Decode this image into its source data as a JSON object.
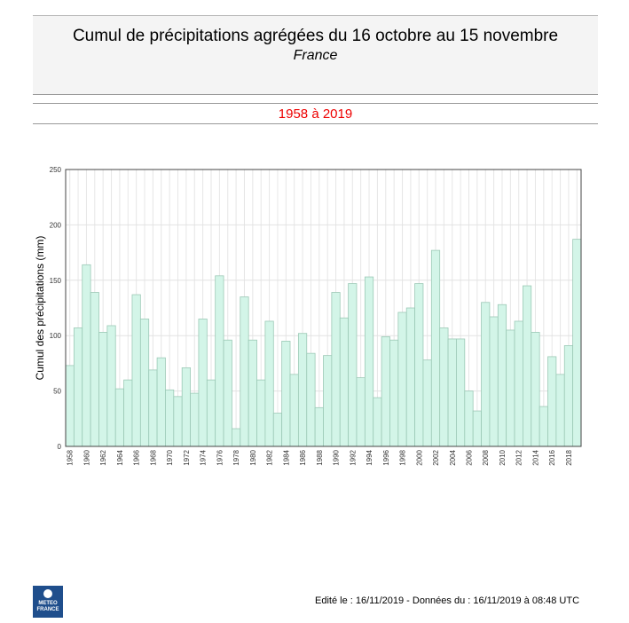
{
  "header": {
    "title": "Cumul de précipitations agrégées du 16 octobre au 15 novembre",
    "subtitle": "France",
    "period": "1958 à 2019"
  },
  "footer": {
    "text": "Edité le : 16/11/2019 - Données du : 16/11/2019 à 08:48 UTC",
    "logo": "METEO FRANCE"
  },
  "colors": {
    "bar_fill": "#d3f5e8",
    "bar_stroke": "#9cc9b6",
    "period_text": "#e00000"
  },
  "chart_data": {
    "type": "bar",
    "ylabel": "Cumul des précipitations (mm)",
    "xlabel": "",
    "ylim": [
      0,
      250
    ],
    "yticks": [
      0,
      50,
      100,
      150,
      200,
      250
    ],
    "grid": true,
    "categories": [
      1958,
      1959,
      1960,
      1961,
      1962,
      1963,
      1964,
      1965,
      1966,
      1967,
      1968,
      1969,
      1970,
      1971,
      1972,
      1973,
      1974,
      1975,
      1976,
      1977,
      1978,
      1979,
      1980,
      1981,
      1982,
      1983,
      1984,
      1985,
      1986,
      1987,
      1988,
      1989,
      1990,
      1991,
      1992,
      1993,
      1994,
      1995,
      1996,
      1997,
      1998,
      1999,
      2000,
      2001,
      2002,
      2003,
      2004,
      2005,
      2006,
      2007,
      2008,
      2009,
      2010,
      2011,
      2012,
      2013,
      2014,
      2015,
      2016,
      2017,
      2018,
      2019
    ],
    "values": [
      73,
      107,
      164,
      139,
      103,
      109,
      52,
      60,
      137,
      115,
      69,
      80,
      51,
      45,
      71,
      48,
      115,
      60,
      154,
      96,
      16,
      135,
      96,
      60,
      113,
      30,
      95,
      65,
      102,
      84,
      35,
      82,
      139,
      116,
      147,
      62,
      153,
      44,
      99,
      96,
      121,
      125,
      147,
      78,
      177,
      107,
      97,
      97,
      50,
      32,
      130,
      117,
      128,
      105,
      113,
      145,
      103,
      36,
      81,
      65,
      91,
      187
    ]
  }
}
